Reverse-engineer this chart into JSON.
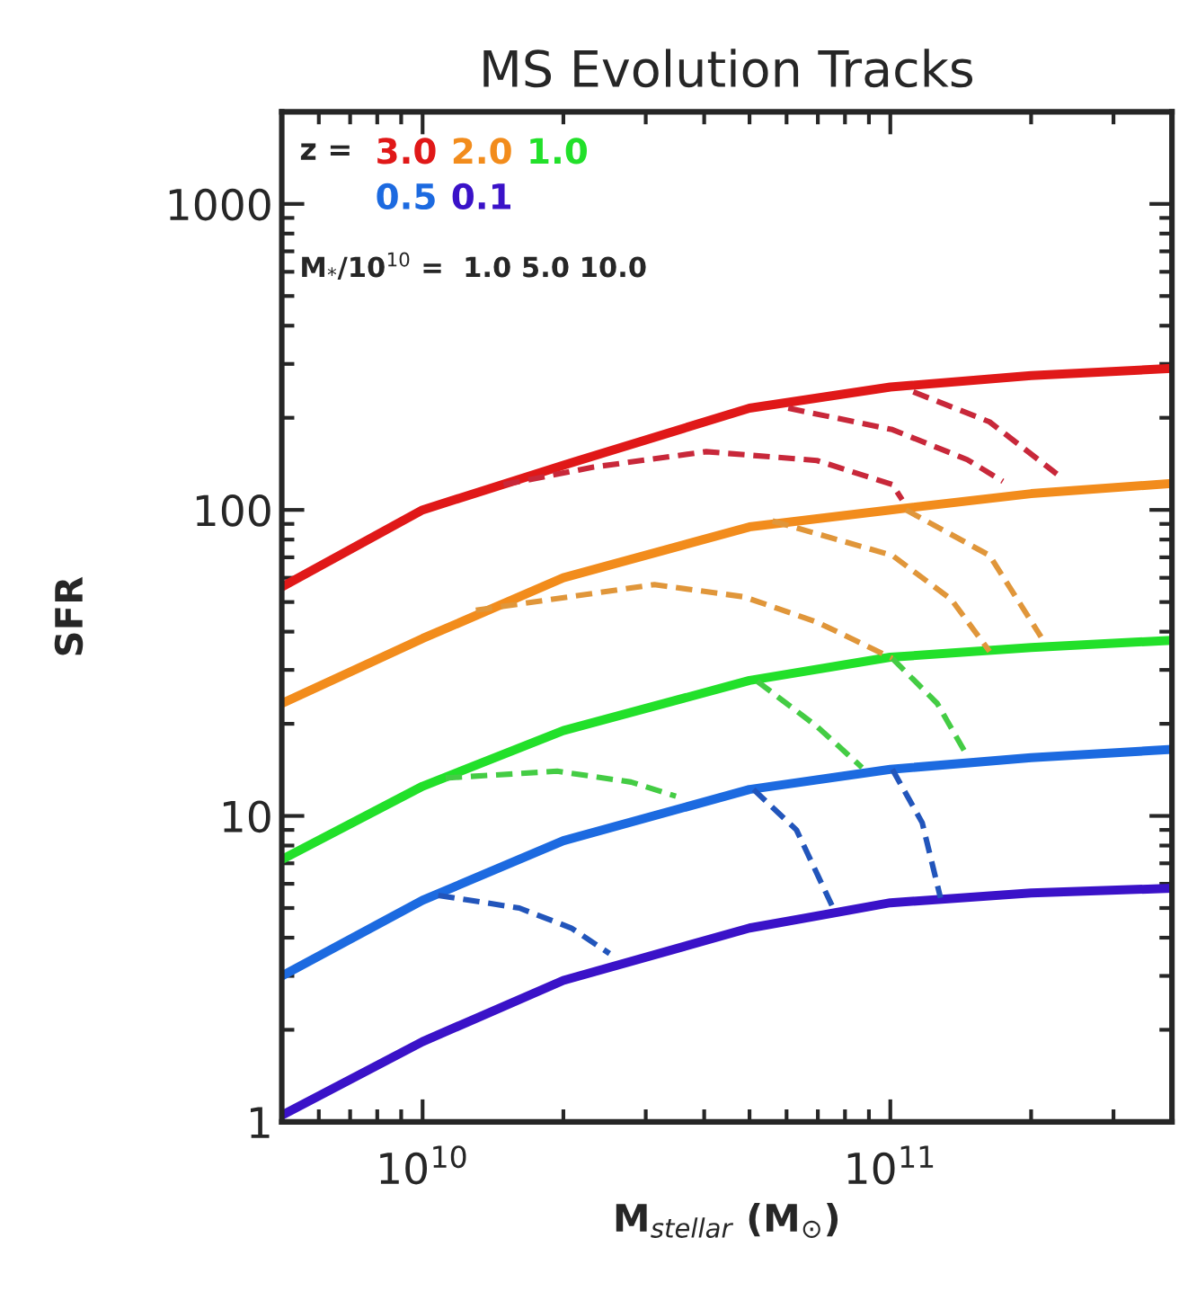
{
  "chart_data": {
    "type": "line",
    "title": "MS Evolution Tracks",
    "xlabel": "M$_{stellar}$ (M$_{⊙}$)",
    "ylabel": "SFR",
    "log": "xy",
    "xlim": [
      5000000000.0,
      400000000000.0
    ],
    "ylim": [
      1,
      2000
    ],
    "xticks": [
      {
        "value": 10000000000.0,
        "label": "10$^{10}$"
      },
      {
        "value": 100000000000.0,
        "label": "10$^{11}$"
      }
    ],
    "yticks": [
      1,
      10,
      100,
      1000
    ],
    "grid": false,
    "legend": "top left",
    "legend_title": "z =",
    "annotations": [
      "M$_{*}$/10$^{10}$ =  1.0 5.0 10.0"
    ],
    "x": [
      5000000000.0,
      10000000000.0,
      20000000000.0,
      50000000000.0,
      100000000000.0,
      200000000000.0,
      400000000000.0
    ],
    "series": [
      {
        "name": "3.0",
        "color": "#e01818",
        "line_style": "solid",
        "values": [
          56,
          100,
          140,
          215,
          252,
          275,
          290
        ]
      },
      {
        "name": "2.0",
        "color": "#f28c1c",
        "line_style": "solid",
        "values": [
          23.3,
          38,
          60,
          88,
          100,
          113,
          122
        ]
      },
      {
        "name": "1.0",
        "color": "#22e02a",
        "line_style": "solid",
        "values": [
          7.2,
          12.5,
          19,
          27.7,
          33,
          35.5,
          37.5
        ]
      },
      {
        "name": "0.5",
        "color": "#1c6ae0",
        "line_style": "solid",
        "values": [
          3.0,
          5.3,
          8.3,
          12.2,
          14.2,
          15.5,
          16.5
        ]
      },
      {
        "name": "0.1",
        "color": "#3a12c8",
        "line_style": "solid",
        "values": [
          1.05,
          1.83,
          2.9,
          4.3,
          5.2,
          5.6,
          5.8
        ]
      },
      {
        "color": "#c8283a",
        "line_style": "dashed",
        "x": [
          14900000000.0,
          23200000000.0,
          40400000000.0,
          69700000000.0,
          101000000000.0,
          106000000000.0
        ],
        "values": [
          121,
          138,
          155,
          145,
          121,
          108
        ]
      },
      {
        "color": "#c8283a",
        "line_style": "dashed",
        "x": [
          60500000000.0,
          101000000000.0,
          146000000000.0,
          174000000000.0
        ],
        "values": [
          215,
          183,
          146,
          124
        ]
      },
      {
        "color": "#c8283a",
        "line_style": "dashed",
        "x": [
          112000000000.0,
          163000000000.0,
          227000000000.0
        ],
        "values": [
          243,
          194,
          131
        ]
      },
      {
        "color": "#e0963a",
        "line_style": "dashed",
        "x": [
          13000000000.0,
          31300000000.0,
          48600000000.0,
          69700000000.0,
          94000000000.0,
          101000000000.0
        ],
        "values": [
          47,
          57,
          52,
          43,
          34.5,
          32.7
        ]
      },
      {
        "color": "#e0963a",
        "line_style": "dashed",
        "x": [
          56000000000.0,
          101000000000.0,
          135000000000.0,
          163000000000.0
        ],
        "values": [
          92,
          71,
          51,
          34.5
        ]
      },
      {
        "color": "#e0963a",
        "line_style": "dashed",
        "x": [
          108000000000.0,
          163000000000.0,
          210000000000.0
        ],
        "values": [
          100,
          71,
          38.5
        ]
      },
      {
        "color": "#44cc44",
        "line_style": "dashed",
        "x": [
          11200000000.0,
          19400000000.0,
          27900000000.0,
          34800000000.0
        ],
        "values": [
          13.3,
          14.0,
          12.9,
          11.6
        ]
      },
      {
        "color": "#44cc44",
        "line_style": "dashed",
        "x": [
          52000000000.0,
          69700000000.0,
          87000000000.0
        ],
        "values": [
          27.5,
          19.6,
          14.4
        ]
      },
      {
        "color": "#44cc44",
        "line_style": "dashed",
        "x": [
          101000000000.0,
          126000000000.0,
          144000000000.0
        ],
        "values": [
          32.7,
          23.3,
          16.3
        ]
      },
      {
        "color": "#2255bb",
        "line_style": "dashed",
        "x": [
          10800000000.0,
          16100000000.0,
          20800000000.0,
          25100000000.0
        ],
        "values": [
          5.5,
          5.0,
          4.3,
          3.55
        ]
      },
      {
        "color": "#2255bb",
        "line_style": "dashed",
        "x": [
          51000000000.0,
          63000000000.0,
          75000000000.0
        ],
        "values": [
          12.2,
          9.0,
          5.1
        ]
      },
      {
        "color": "#2255bb",
        "line_style": "dashed",
        "x": [
          101000000000.0,
          117000000000.0,
          128000000000.0
        ],
        "values": [
          14.2,
          9.5,
          5.4
        ]
      }
    ]
  }
}
